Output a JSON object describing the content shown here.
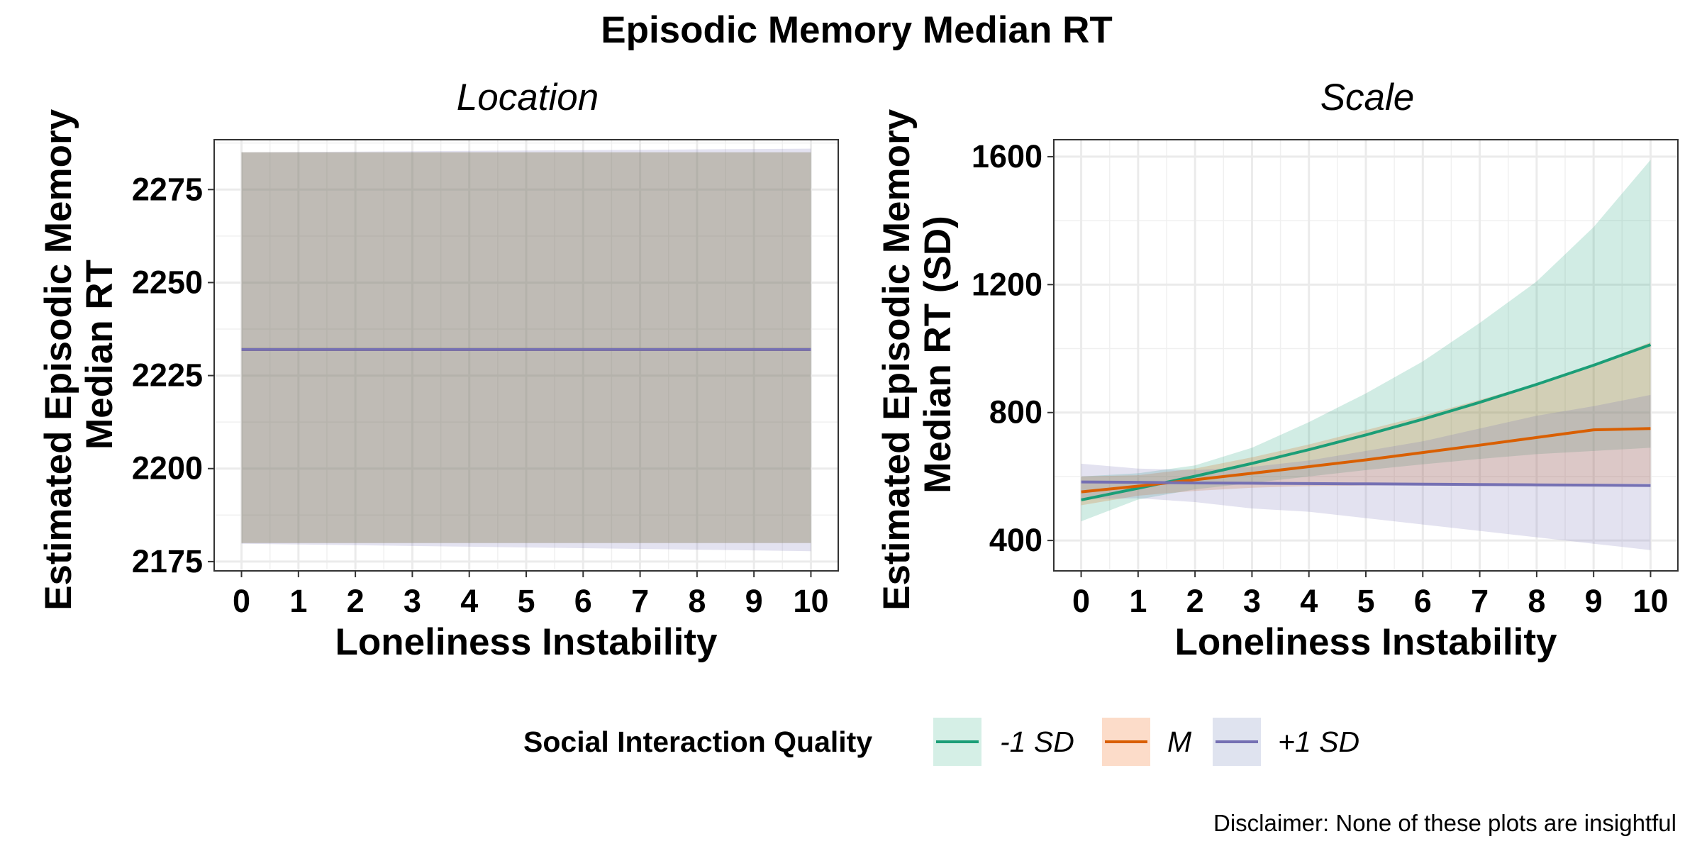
{
  "title": "Episodic Memory Median RT",
  "caption": "Disclaimer: None of these plots are insightful",
  "legend": {
    "title": "Social Interaction Quality",
    "items": [
      {
        "label": "-1 SD",
        "line_color": "#1B9E77",
        "fill_color": "#d5efe6"
      },
      {
        "label": "M",
        "line_color": "#D95F02",
        "fill_color": "#fcdcc9"
      },
      {
        "label": "+1 SD",
        "line_color": "#7570B3",
        "fill_color": "#dfe3ef"
      }
    ]
  },
  "chart_data": [
    {
      "type": "line",
      "panel_title": "Location",
      "xlabel": "Loneliness Instability",
      "ylabel_lines": [
        "Estimated Episodic Memory",
        "Median RT"
      ],
      "xlim": [
        -0.48,
        10.48
      ],
      "ylim": [
        2172.5,
        2288.4
      ],
      "x_ticks": [
        0,
        1,
        2,
        3,
        4,
        5,
        6,
        7,
        8,
        9,
        10
      ],
      "y_ticks": [
        2175,
        2200,
        2225,
        2250,
        2275
      ],
      "grid": true,
      "x": [
        0,
        1,
        2,
        3,
        4,
        5,
        6,
        7,
        8,
        9,
        10
      ],
      "series": [
        {
          "name": "-1 SD",
          "color": "#1B9E77",
          "values": [
            2232,
            2232,
            2232,
            2232,
            2232,
            2232,
            2232,
            2232,
            2232,
            2232,
            2232
          ],
          "lower": [
            2180,
            2180,
            2180,
            2180,
            2180,
            2180,
            2180,
            2180,
            2180,
            2180,
            2180
          ],
          "upper": [
            2285,
            2285,
            2285,
            2285,
            2285,
            2285,
            2285,
            2285,
            2285,
            2285,
            2285
          ]
        },
        {
          "name": "M",
          "color": "#D95F02",
          "values": [
            2232,
            2232,
            2232,
            2232,
            2232,
            2232,
            2232,
            2232,
            2232,
            2232,
            2232
          ],
          "lower": [
            2180,
            2180,
            2180,
            2180,
            2180,
            2180,
            2180,
            2180,
            2180,
            2180,
            2180
          ],
          "upper": [
            2285,
            2285,
            2285,
            2285,
            2285,
            2285,
            2285,
            2285,
            2285,
            2285,
            2285
          ]
        },
        {
          "name": "+1 SD",
          "color": "#7570B3",
          "values": [
            2232,
            2232,
            2232,
            2232,
            2232,
            2232,
            2232,
            2232,
            2232,
            2232,
            2232
          ],
          "lower": [
            2179.8,
            2179.6,
            2179.4,
            2179.2,
            2179,
            2178.8,
            2178.6,
            2178.4,
            2178.2,
            2178,
            2177.8
          ],
          "upper": [
            2285,
            2285.1,
            2285.2,
            2285.3,
            2285.4,
            2285.5,
            2285.6,
            2285.7,
            2285.8,
            2285.9,
            2286
          ]
        }
      ]
    },
    {
      "type": "line",
      "panel_title": "Scale",
      "xlabel": "Loneliness Instability",
      "ylabel_lines": [
        "Estimated Episodic Memory",
        "Median RT (SD)"
      ],
      "xlim": [
        -0.48,
        10.48
      ],
      "ylim": [
        305,
        1653
      ],
      "x_ticks": [
        0,
        1,
        2,
        3,
        4,
        5,
        6,
        7,
        8,
        9,
        10
      ],
      "y_ticks": [
        400,
        800,
        1200,
        1600
      ],
      "grid": true,
      "x": [
        0,
        1,
        2,
        3,
        4,
        5,
        6,
        7,
        8,
        9,
        10
      ],
      "series": [
        {
          "name": "-1 SD",
          "color": "#1B9E77",
          "values": [
            527,
            563,
            601,
            641,
            684,
            730,
            779,
            832,
            888,
            948,
            1012
          ],
          "lower": [
            460,
            528,
            560,
            580,
            600,
            620,
            638,
            655,
            670,
            680,
            690
          ],
          "upper": [
            600,
            610,
            635,
            690,
            770,
            860,
            960,
            1080,
            1210,
            1380,
            1590
          ]
        },
        {
          "name": "M",
          "color": "#D95F02",
          "values": [
            552,
            570,
            590,
            610,
            631,
            652,
            675,
            698,
            722,
            746,
            750
          ],
          "lower": [
            510,
            540,
            555,
            565,
            570,
            572,
            574,
            575,
            576,
            577,
            578
          ],
          "upper": [
            600,
            604,
            625,
            660,
            700,
            745,
            790,
            840,
            890,
            950,
            1020
          ]
        },
        {
          "name": "+1 SD",
          "color": "#7570B3",
          "values": [
            583,
            582,
            580,
            579,
            578,
            577,
            576,
            575,
            574,
            573,
            572
          ],
          "lower": [
            530,
            532,
            520,
            500,
            490,
            470,
            450,
            430,
            410,
            390,
            370
          ],
          "upper": [
            640,
            625,
            620,
            630,
            650,
            680,
            710,
            750,
            790,
            820,
            855
          ]
        }
      ]
    }
  ]
}
